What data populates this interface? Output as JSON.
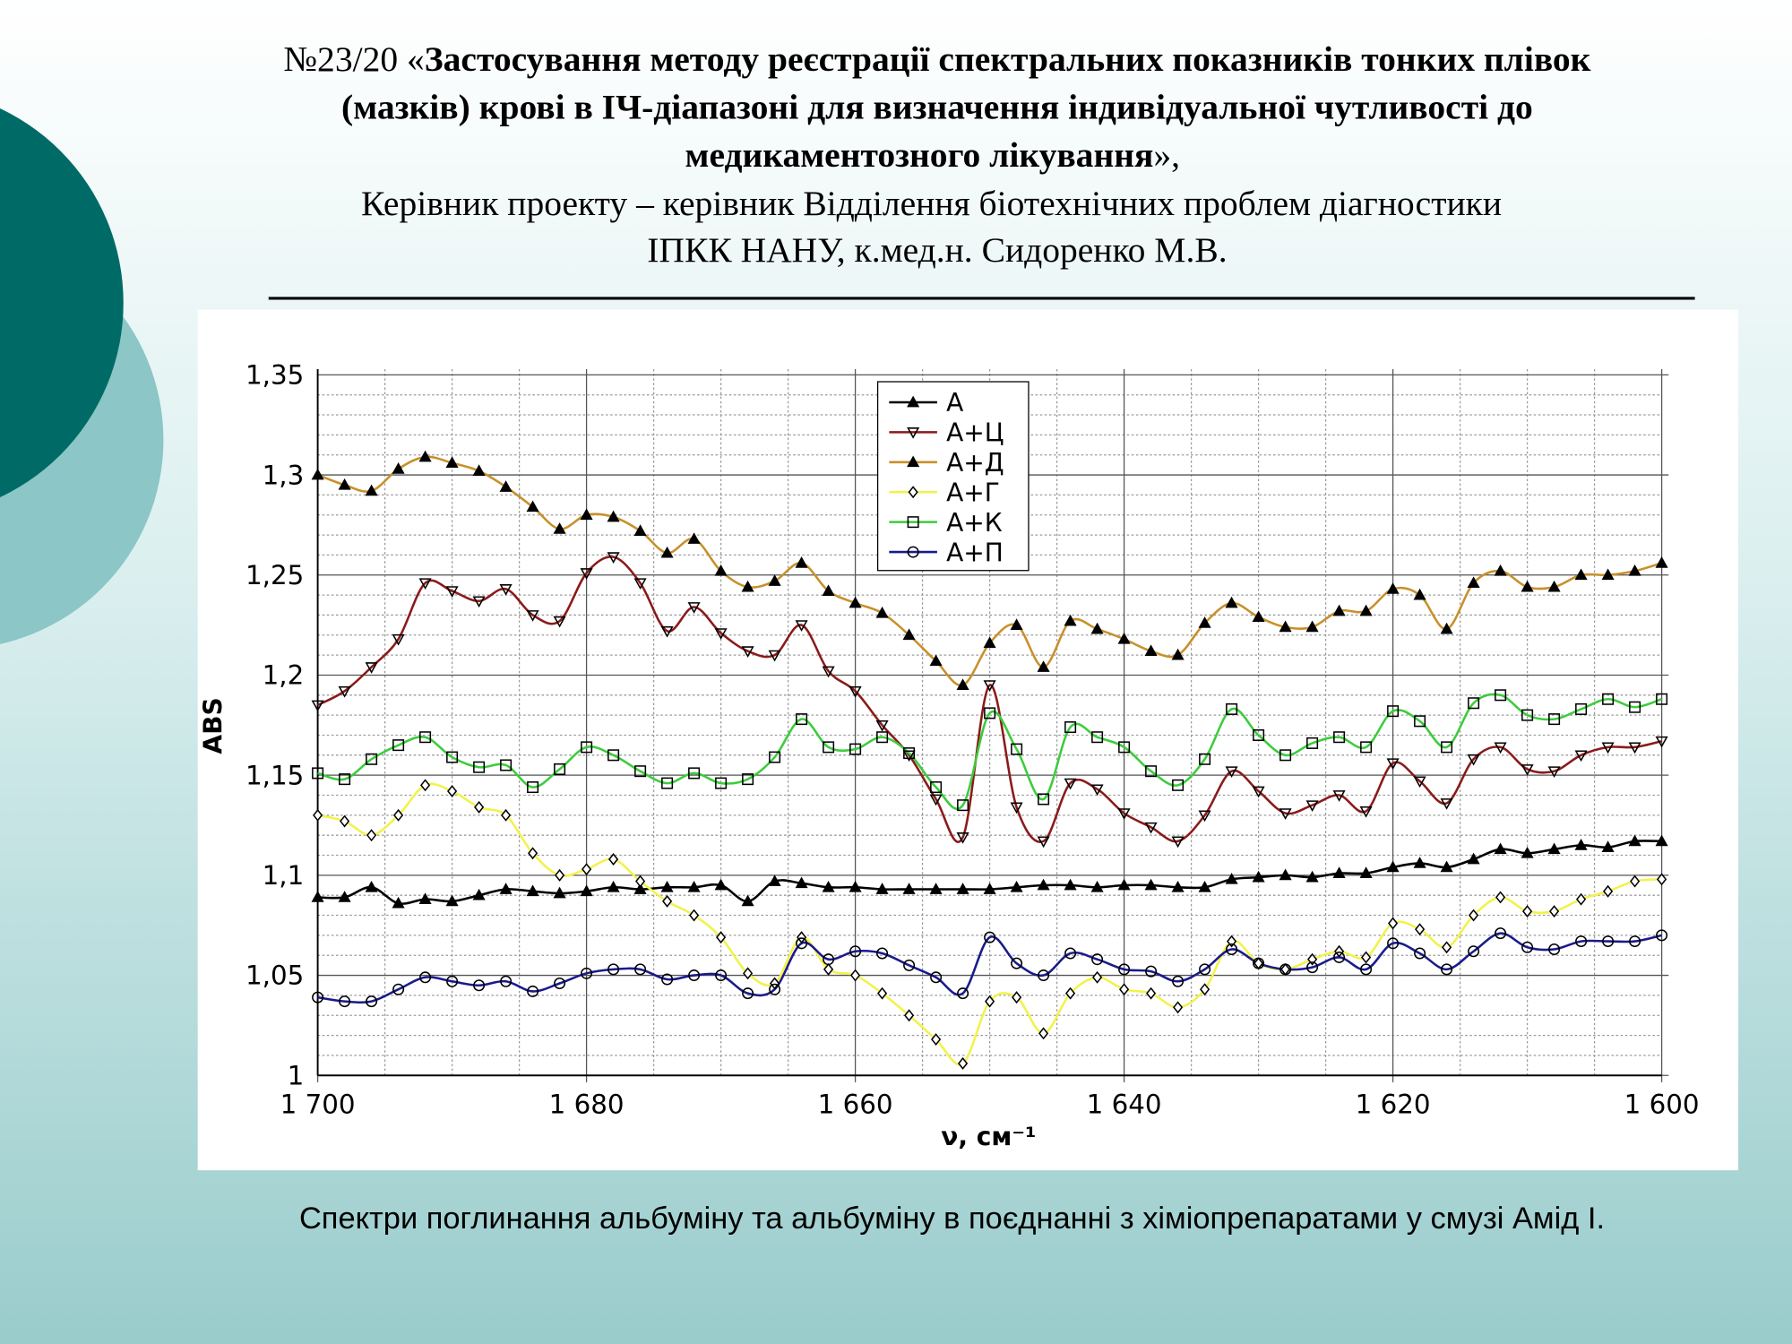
{
  "header": {
    "title_number": "№23/20 «",
    "title_bold_lines": [
      "Застосування методу реєстрації спектральних показників тонких плівок",
      "(мазків) крові в ІЧ-діапазоні для визначення індивідуальної чутливості до",
      "медикаментозного лікування"
    ],
    "title_suffix": "»,",
    "supervisor_lines": [
      "Керівник проекту – керівник Відділення біотехнічних проблем діагностики",
      "ІПКК НАНУ, к.мед.н. Сидоренко М.В."
    ]
  },
  "caption": "Спектри поглинання альбуміну та альбуміну в поєднанні з хіміопрепаратами у смузі Амід І.",
  "chart_data": {
    "type": "line",
    "x_label": "ν, см⁻¹",
    "y_label": "ABS",
    "x": [
      1700,
      1698,
      1696,
      1694,
      1692,
      1690,
      1688,
      1686,
      1684,
      1682,
      1680,
      1678,
      1676,
      1674,
      1672,
      1670,
      1668,
      1666,
      1664,
      1662,
      1660,
      1658,
      1656,
      1654,
      1652,
      1650,
      1648,
      1646,
      1644,
      1642,
      1640,
      1638,
      1636,
      1634,
      1632,
      1630,
      1628,
      1626,
      1624,
      1622,
      1620,
      1618,
      1616,
      1614,
      1612,
      1610,
      1608,
      1606,
      1604,
      1602,
      1600
    ],
    "xlim": [
      1700,
      1600
    ],
    "xticks": [
      {
        "value": 1700,
        "label": "1 700"
      },
      {
        "value": 1680,
        "label": "1 680"
      },
      {
        "value": 1660,
        "label": "1 660"
      },
      {
        "value": 1640,
        "label": "1 640"
      },
      {
        "value": 1620,
        "label": "1 620"
      },
      {
        "value": 1600,
        "label": "1 600"
      }
    ],
    "xminor": [
      1695,
      1690,
      1685,
      1675,
      1670,
      1665,
      1655,
      1650,
      1645,
      1635,
      1630,
      1625,
      1615,
      1610,
      1605
    ],
    "ylim": [
      1,
      1.35
    ],
    "yticks": [
      1,
      {
        "value": 1.05,
        "label": "1,05"
      },
      {
        "value": 1.1,
        "label": "1,1"
      },
      {
        "value": 1.15,
        "label": "1,15"
      },
      {
        "value": 1.2,
        "label": "1,2"
      },
      {
        "value": 1.25,
        "label": "1,25"
      },
      {
        "value": 1.3,
        "label": "1,3"
      },
      {
        "value": 1.35,
        "label": "1,35"
      }
    ],
    "yminor": [
      1.01,
      1.02,
      1.03,
      1.04,
      1.06,
      1.07,
      1.08,
      1.09,
      1.11,
      1.12,
      1.13,
      1.14,
      1.16,
      1.17,
      1.18,
      1.19,
      1.21,
      1.22,
      1.23,
      1.24,
      1.26,
      1.27,
      1.28,
      1.29,
      1.31,
      1.32,
      1.33,
      1.34
    ],
    "grid": true,
    "legend": "upper center",
    "series": [
      {
        "name": "А",
        "color": "#000000",
        "marker": "triangle-up",
        "values": [
          1.089,
          1.089,
          1.094,
          1.086,
          1.088,
          1.087,
          1.09,
          1.093,
          1.092,
          1.091,
          1.092,
          1.094,
          1.093,
          1.094,
          1.094,
          1.095,
          1.087,
          1.097,
          1.096,
          1.094,
          1.094,
          1.093,
          1.093,
          1.093,
          1.093,
          1.093,
          1.094,
          1.095,
          1.095,
          1.094,
          1.095,
          1.095,
          1.094,
          1.094,
          1.098,
          1.099,
          1.1,
          1.099,
          1.101,
          1.101,
          1.104,
          1.106,
          1.104,
          1.108,
          1.113,
          1.111,
          1.113,
          1.115,
          1.114,
          1.117,
          1.117
        ]
      },
      {
        "name": "А+Ц",
        "color": "#8b1a1a",
        "marker": "triangle-down",
        "values": [
          1.185,
          1.192,
          1.204,
          1.218,
          1.246,
          1.242,
          1.237,
          1.243,
          1.23,
          1.227,
          1.251,
          1.259,
          1.246,
          1.222,
          1.234,
          1.221,
          1.212,
          1.21,
          1.225,
          1.202,
          1.192,
          1.175,
          1.16,
          1.138,
          1.119,
          1.195,
          1.134,
          1.117,
          1.146,
          1.143,
          1.131,
          1.124,
          1.117,
          1.13,
          1.152,
          1.142,
          1.131,
          1.135,
          1.14,
          1.132,
          1.156,
          1.147,
          1.136,
          1.158,
          1.164,
          1.153,
          1.152,
          1.16,
          1.164,
          1.164,
          1.167
        ]
      },
      {
        "name": "А+Д",
        "color": "#c8902a",
        "marker": "triangle-up",
        "values": [
          1.3,
          1.295,
          1.292,
          1.303,
          1.309,
          1.306,
          1.302,
          1.294,
          1.284,
          1.273,
          1.28,
          1.279,
          1.272,
          1.261,
          1.268,
          1.252,
          1.244,
          1.247,
          1.256,
          1.242,
          1.236,
          1.231,
          1.22,
          1.207,
          1.195,
          1.216,
          1.225,
          1.204,
          1.227,
          1.223,
          1.218,
          1.212,
          1.21,
          1.226,
          1.236,
          1.229,
          1.224,
          1.224,
          1.232,
          1.232,
          1.243,
          1.24,
          1.223,
          1.246,
          1.252,
          1.244,
          1.244,
          1.25,
          1.25,
          1.252,
          1.256
        ]
      },
      {
        "name": "А+Г",
        "color": "#f2f24a",
        "marker": "diamond",
        "values": [
          1.13,
          1.127,
          1.12,
          1.13,
          1.145,
          1.142,
          1.134,
          1.13,
          1.111,
          1.1,
          1.103,
          1.108,
          1.097,
          1.087,
          1.08,
          1.069,
          1.051,
          1.046,
          1.069,
          1.053,
          1.05,
          1.041,
          1.03,
          1.018,
          1.006,
          1.037,
          1.039,
          1.021,
          1.041,
          1.049,
          1.043,
          1.041,
          1.034,
          1.043,
          1.067,
          1.056,
          1.053,
          1.058,
          1.062,
          1.059,
          1.076,
          1.073,
          1.064,
          1.08,
          1.089,
          1.082,
          1.082,
          1.088,
          1.092,
          1.097,
          1.098
        ]
      },
      {
        "name": "А+К",
        "color": "#3ccc3c",
        "marker": "square",
        "values": [
          1.151,
          1.148,
          1.158,
          1.165,
          1.169,
          1.159,
          1.154,
          1.155,
          1.144,
          1.153,
          1.164,
          1.16,
          1.152,
          1.146,
          1.151,
          1.146,
          1.148,
          1.159,
          1.178,
          1.164,
          1.163,
          1.169,
          1.161,
          1.144,
          1.135,
          1.181,
          1.163,
          1.138,
          1.174,
          1.169,
          1.164,
          1.152,
          1.145,
          1.158,
          1.183,
          1.17,
          1.16,
          1.166,
          1.169,
          1.164,
          1.182,
          1.177,
          1.164,
          1.186,
          1.19,
          1.18,
          1.178,
          1.183,
          1.188,
          1.184,
          1.188
        ]
      },
      {
        "name": "А+П",
        "color": "#1a1a8c",
        "marker": "circle",
        "values": [
          1.039,
          1.037,
          1.037,
          1.043,
          1.049,
          1.047,
          1.045,
          1.047,
          1.042,
          1.046,
          1.051,
          1.053,
          1.053,
          1.048,
          1.05,
          1.05,
          1.041,
          1.043,
          1.066,
          1.058,
          1.062,
          1.061,
          1.055,
          1.049,
          1.041,
          1.069,
          1.056,
          1.05,
          1.061,
          1.058,
          1.053,
          1.052,
          1.047,
          1.053,
          1.063,
          1.056,
          1.053,
          1.054,
          1.059,
          1.053,
          1.066,
          1.061,
          1.053,
          1.062,
          1.071,
          1.064,
          1.063,
          1.067,
          1.067,
          1.067,
          1.07
        ]
      }
    ]
  }
}
